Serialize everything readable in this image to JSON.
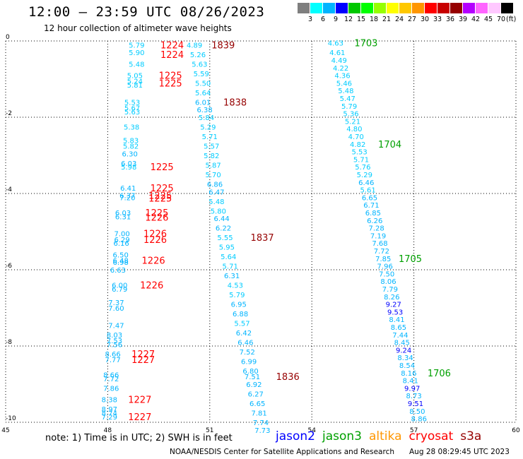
{
  "header": {
    "title": "12:00 – 23:59 UTC 08/26/2023",
    "subtitle": "12 hour collection of altimeter wave heights"
  },
  "scale": {
    "unit": "(ft)",
    "labels": [
      "3",
      "6",
      "9",
      "12",
      "15",
      "18",
      "21",
      "24",
      "27",
      "30",
      "33",
      "36",
      "39",
      "42",
      "45",
      "70"
    ],
    "colors": [
      "#7f7f7f",
      "#00ffff",
      "#00b4ff",
      "#0000ff",
      "#00c800",
      "#00ff00",
      "#96ff00",
      "#ffff00",
      "#ffc800",
      "#ff9600",
      "#ff0000",
      "#c80000",
      "#960000",
      "#b400ff",
      "#ff64ff",
      "#ffc8ff",
      "#000000"
    ]
  },
  "chart_data": {
    "type": "scatter",
    "xlim": [
      45,
      60
    ],
    "ylim": [
      -10,
      0
    ],
    "xticks": [
      45,
      48,
      51,
      54,
      57,
      60
    ],
    "yticks": [
      0,
      -2,
      -4,
      -6,
      -8,
      -10
    ],
    "points": [
      {
        "x": 48.85,
        "y": -0.1,
        "v": "5.79"
      },
      {
        "x": 48.85,
        "y": -0.3,
        "v": "5.90"
      },
      {
        "x": 48.85,
        "y": -0.6,
        "v": "5.48"
      },
      {
        "x": 48.8,
        "y": -0.9,
        "v": "5.05"
      },
      {
        "x": 48.8,
        "y": -1.05,
        "v": "5.24"
      },
      {
        "x": 48.8,
        "y": -1.15,
        "v": "5.81"
      },
      {
        "x": 48.72,
        "y": -1.6,
        "v": "5.53"
      },
      {
        "x": 48.72,
        "y": -1.75,
        "v": "5.67"
      },
      {
        "x": 48.72,
        "y": -1.85,
        "v": "5.63"
      },
      {
        "x": 48.7,
        "y": -2.25,
        "v": "5.38"
      },
      {
        "x": 48.68,
        "y": -2.6,
        "v": "5.83"
      },
      {
        "x": 48.68,
        "y": -2.75,
        "v": "5.82"
      },
      {
        "x": 48.65,
        "y": -2.95,
        "v": "6.30"
      },
      {
        "x": 48.62,
        "y": -3.2,
        "v": "6.03"
      },
      {
        "x": 48.62,
        "y": -3.3,
        "v": "5.98"
      },
      {
        "x": 48.6,
        "y": -3.85,
        "v": "6.41"
      },
      {
        "x": 48.58,
        "y": -4.05,
        "v": "6.37"
      },
      {
        "x": 48.58,
        "y": -4.1,
        "v": "7.20"
      },
      {
        "x": 48.45,
        "y": -4.5,
        "v": "6.03"
      },
      {
        "x": 48.45,
        "y": -4.6,
        "v": "6.31"
      },
      {
        "x": 48.42,
        "y": -5.05,
        "v": "7.00"
      },
      {
        "x": 48.42,
        "y": -5.2,
        "v": "6.29"
      },
      {
        "x": 48.4,
        "y": -5.3,
        "v": "6.16"
      },
      {
        "x": 48.38,
        "y": -5.6,
        "v": "6.50"
      },
      {
        "x": 48.38,
        "y": -5.75,
        "v": "6.48"
      },
      {
        "x": 48.38,
        "y": -5.8,
        "v": "6.98"
      },
      {
        "x": 48.3,
        "y": -6.0,
        "v": "6.63"
      },
      {
        "x": 48.35,
        "y": -6.4,
        "v": "6.00"
      },
      {
        "x": 48.35,
        "y": -6.5,
        "v": "6.79"
      },
      {
        "x": 48.25,
        "y": -6.85,
        "v": "7.37"
      },
      {
        "x": 48.25,
        "y": -7.0,
        "v": "7.60"
      },
      {
        "x": 48.25,
        "y": -7.45,
        "v": "7.47"
      },
      {
        "x": 48.2,
        "y": -7.7,
        "v": "8.03"
      },
      {
        "x": 48.2,
        "y": -7.85,
        "v": "7.53"
      },
      {
        "x": 48.2,
        "y": -7.95,
        "v": "7.56"
      },
      {
        "x": 48.15,
        "y": -8.2,
        "v": "8.66"
      },
      {
        "x": 48.15,
        "y": -8.35,
        "v": "7.77"
      },
      {
        "x": 48.1,
        "y": -8.75,
        "v": "8.66"
      },
      {
        "x": 48.1,
        "y": -8.85,
        "v": "7.72"
      },
      {
        "x": 48.1,
        "y": -9.1,
        "v": "7.86"
      },
      {
        "x": 48.05,
        "y": -9.4,
        "v": "8.38"
      },
      {
        "x": 48.05,
        "y": -9.65,
        "v": "8.97"
      },
      {
        "x": 48.05,
        "y": -9.75,
        "v": "8.74"
      },
      {
        "x": 48.05,
        "y": -9.85,
        "v": "7.29"
      },
      {
        "x": 50.55,
        "y": -0.1,
        "v": "4.89"
      },
      {
        "x": 50.65,
        "y": -0.35,
        "v": "5.26"
      },
      {
        "x": 50.7,
        "y": -0.6,
        "v": "5.63"
      },
      {
        "x": 50.75,
        "y": -0.85,
        "v": "5.59"
      },
      {
        "x": 50.8,
        "y": -1.1,
        "v": "5.50"
      },
      {
        "x": 50.8,
        "y": -1.35,
        "v": "5.64"
      },
      {
        "x": 50.8,
        "y": -1.6,
        "v": "6.01"
      },
      {
        "x": 50.85,
        "y": -1.8,
        "v": "6.38"
      },
      {
        "x": 50.9,
        "y": -2.0,
        "v": "5.84"
      },
      {
        "x": 50.95,
        "y": -2.25,
        "v": "5.29"
      },
      {
        "x": 51.0,
        "y": -2.5,
        "v": "5.71"
      },
      {
        "x": 51.05,
        "y": -2.75,
        "v": "5.57"
      },
      {
        "x": 51.05,
        "y": -3.0,
        "v": "5.82"
      },
      {
        "x": 51.1,
        "y": -3.25,
        "v": "5.87"
      },
      {
        "x": 51.1,
        "y": -3.5,
        "v": "5.70"
      },
      {
        "x": 51.15,
        "y": -3.75,
        "v": "6.86"
      },
      {
        "x": 51.2,
        "y": -3.95,
        "v": "6.47"
      },
      {
        "x": 51.2,
        "y": -4.2,
        "v": "5.48"
      },
      {
        "x": 51.25,
        "y": -4.45,
        "v": "5.80"
      },
      {
        "x": 51.35,
        "y": -4.65,
        "v": "6.44"
      },
      {
        "x": 51.4,
        "y": -4.9,
        "v": "6.22"
      },
      {
        "x": 51.45,
        "y": -5.15,
        "v": "5.55"
      },
      {
        "x": 51.5,
        "y": -5.4,
        "v": "5.95"
      },
      {
        "x": 51.55,
        "y": -5.65,
        "v": "5.64"
      },
      {
        "x": 51.6,
        "y": -5.9,
        "v": "5.71"
      },
      {
        "x": 51.65,
        "y": -6.15,
        "v": "6.31"
      },
      {
        "x": 51.75,
        "y": -6.4,
        "v": "4.53"
      },
      {
        "x": 51.8,
        "y": -6.65,
        "v": "5.79"
      },
      {
        "x": 51.85,
        "y": -6.9,
        "v": "6.95"
      },
      {
        "x": 51.9,
        "y": -7.15,
        "v": "6.88"
      },
      {
        "x": 51.95,
        "y": -7.4,
        "v": "5.57"
      },
      {
        "x": 52.0,
        "y": -7.65,
        "v": "6.42"
      },
      {
        "x": 52.05,
        "y": -7.9,
        "v": "6.46"
      },
      {
        "x": 52.1,
        "y": -8.15,
        "v": "7.52"
      },
      {
        "x": 52.15,
        "y": -8.4,
        "v": "6.99"
      },
      {
        "x": 52.2,
        "y": -8.65,
        "v": "6.80"
      },
      {
        "x": 52.25,
        "y": -8.8,
        "v": "7.51"
      },
      {
        "x": 52.3,
        "y": -9.0,
        "v": "6.92"
      },
      {
        "x": 52.35,
        "y": -9.25,
        "v": "6.27"
      },
      {
        "x": 52.4,
        "y": -9.5,
        "v": "6.65"
      },
      {
        "x": 52.45,
        "y": -9.75,
        "v": "7.81"
      },
      {
        "x": 52.5,
        "y": -10.0,
        "v": "7.74"
      },
      {
        "x": 52.55,
        "y": -10.2,
        "v": "7.73"
      },
      {
        "x": 54.7,
        "y": -0.05,
        "v": "4.63"
      },
      {
        "x": 54.75,
        "y": -0.3,
        "v": "4.61"
      },
      {
        "x": 54.8,
        "y": -0.5,
        "v": "4.49"
      },
      {
        "x": 54.85,
        "y": -0.7,
        "v": "4.22"
      },
      {
        "x": 54.9,
        "y": -0.9,
        "v": "4.36"
      },
      {
        "x": 54.95,
        "y": -1.1,
        "v": "5.46"
      },
      {
        "x": 55.0,
        "y": -1.3,
        "v": "5.48"
      },
      {
        "x": 55.05,
        "y": -1.5,
        "v": "5.47"
      },
      {
        "x": 55.1,
        "y": -1.7,
        "v": "5.79"
      },
      {
        "x": 55.15,
        "y": -1.9,
        "v": "5.36"
      },
      {
        "x": 55.2,
        "y": -2.1,
        "v": "5.21"
      },
      {
        "x": 55.25,
        "y": -2.3,
        "v": "4.80"
      },
      {
        "x": 55.3,
        "y": -2.5,
        "v": "4.70"
      },
      {
        "x": 55.35,
        "y": -2.7,
        "v": "4.82"
      },
      {
        "x": 55.4,
        "y": -2.9,
        "v": "5.53"
      },
      {
        "x": 55.45,
        "y": -3.1,
        "v": "5.71"
      },
      {
        "x": 55.5,
        "y": -3.3,
        "v": "5.76"
      },
      {
        "x": 55.55,
        "y": -3.5,
        "v": "5.29"
      },
      {
        "x": 55.6,
        "y": -3.7,
        "v": "6.46"
      },
      {
        "x": 55.65,
        "y": -3.9,
        "v": "5.61"
      },
      {
        "x": 55.7,
        "y": -4.1,
        "v": "6.65"
      },
      {
        "x": 55.75,
        "y": -4.3,
        "v": "6.71"
      },
      {
        "x": 55.8,
        "y": -4.5,
        "v": "6.85"
      },
      {
        "x": 55.85,
        "y": -4.7,
        "v": "6.26"
      },
      {
        "x": 55.9,
        "y": -4.9,
        "v": "7.28"
      },
      {
        "x": 55.95,
        "y": -5.1,
        "v": "7.19"
      },
      {
        "x": 56.0,
        "y": -5.3,
        "v": "7.68"
      },
      {
        "x": 56.05,
        "y": -5.5,
        "v": "7.72"
      },
      {
        "x": 56.1,
        "y": -5.7,
        "v": "7.85"
      },
      {
        "x": 56.15,
        "y": -5.9,
        "v": "7.96"
      },
      {
        "x": 56.2,
        "y": -6.1,
        "v": "7.50"
      },
      {
        "x": 56.25,
        "y": -6.3,
        "v": "8.06"
      },
      {
        "x": 56.3,
        "y": -6.5,
        "v": "7.79"
      },
      {
        "x": 56.35,
        "y": -6.7,
        "v": "8.26"
      },
      {
        "x": 56.4,
        "y": -6.9,
        "v": "9.27"
      },
      {
        "x": 56.45,
        "y": -7.1,
        "v": "9.53"
      },
      {
        "x": 56.5,
        "y": -7.3,
        "v": "8.41"
      },
      {
        "x": 56.55,
        "y": -7.5,
        "v": "8.65"
      },
      {
        "x": 56.6,
        "y": -7.7,
        "v": "7.44"
      },
      {
        "x": 56.65,
        "y": -7.9,
        "v": "8.45"
      },
      {
        "x": 56.7,
        "y": -8.1,
        "v": "9.24"
      },
      {
        "x": 56.75,
        "y": -8.3,
        "v": "8.34"
      },
      {
        "x": 56.8,
        "y": -8.5,
        "v": "8.54"
      },
      {
        "x": 56.85,
        "y": -8.7,
        "v": "8.16"
      },
      {
        "x": 56.9,
        "y": -8.9,
        "v": "8.41"
      },
      {
        "x": 56.95,
        "y": -9.1,
        "v": "9.97"
      },
      {
        "x": 57.0,
        "y": -9.3,
        "v": "8.73"
      },
      {
        "x": 57.05,
        "y": -9.5,
        "v": "9.51"
      },
      {
        "x": 57.1,
        "y": -9.7,
        "v": "8.50"
      },
      {
        "x": 57.15,
        "y": -9.9,
        "v": "8.86"
      }
    ],
    "times": [
      {
        "x": 49.55,
        "y": -0.1,
        "label": "1224",
        "sat": "cryosat"
      },
      {
        "x": 49.55,
        "y": -0.35,
        "label": "1224",
        "sat": "cryosat"
      },
      {
        "x": 49.5,
        "y": -0.9,
        "label": "1225",
        "sat": "cryosat"
      },
      {
        "x": 49.5,
        "y": -1.1,
        "label": "1225",
        "sat": "cryosat"
      },
      {
        "x": 49.25,
        "y": -3.3,
        "label": "1225",
        "sat": "cryosat"
      },
      {
        "x": 49.25,
        "y": -3.85,
        "label": "1225",
        "sat": "cryosat"
      },
      {
        "x": 49.2,
        "y": -4.05,
        "label": "1225",
        "sat": "cryosat"
      },
      {
        "x": 49.2,
        "y": -4.12,
        "label": "1225",
        "sat": "cryosat"
      },
      {
        "x": 49.1,
        "y": -4.5,
        "label": "1225",
        "sat": "cryosat"
      },
      {
        "x": 49.1,
        "y": -4.62,
        "label": "1226",
        "sat": "cryosat"
      },
      {
        "x": 49.05,
        "y": -5.05,
        "label": "1226",
        "sat": "cryosat"
      },
      {
        "x": 49.05,
        "y": -5.2,
        "label": "1226",
        "sat": "cryosat"
      },
      {
        "x": 49.0,
        "y": -5.75,
        "label": "1226",
        "sat": "cryosat"
      },
      {
        "x": 48.95,
        "y": -6.4,
        "label": "1226",
        "sat": "cryosat"
      },
      {
        "x": 48.7,
        "y": -8.2,
        "label": "1227",
        "sat": "cryosat"
      },
      {
        "x": 48.7,
        "y": -8.35,
        "label": "1227",
        "sat": "cryosat"
      },
      {
        "x": 48.6,
        "y": -9.4,
        "label": "1227",
        "sat": "cryosat"
      },
      {
        "x": 48.6,
        "y": -9.85,
        "label": "1227",
        "sat": "cryosat"
      },
      {
        "x": 51.05,
        "y": -0.1,
        "label": "1839",
        "sat": "s3a"
      },
      {
        "x": 51.4,
        "y": -1.6,
        "label": "1838",
        "sat": "s3a"
      },
      {
        "x": 52.2,
        "y": -5.15,
        "label": "1837",
        "sat": "s3a"
      },
      {
        "x": 52.95,
        "y": -8.8,
        "label": "1836",
        "sat": "s3a"
      },
      {
        "x": 55.25,
        "y": -0.05,
        "label": "1703",
        "sat": "jason3"
      },
      {
        "x": 55.95,
        "y": -2.7,
        "label": "1704",
        "sat": "jason3"
      },
      {
        "x": 56.55,
        "y": -5.7,
        "label": "1705",
        "sat": "jason3"
      },
      {
        "x": 57.4,
        "y": -8.7,
        "label": "1706",
        "sat": "jason3"
      }
    ]
  },
  "legend": {
    "note": "note:  1) Time is in UTC; 2) SWH is in feet",
    "satellites": [
      {
        "name": "jason2",
        "color": "#0000ff"
      },
      {
        "name": "jason3",
        "color": "#00a000"
      },
      {
        "name": "altika",
        "color": "#ff9600"
      },
      {
        "name": "cryosat",
        "color": "#ff0000"
      },
      {
        "name": "s3a",
        "color": "#960000"
      }
    ]
  },
  "footer": {
    "credit": "NOAA/NESDIS Center for Satellite Applications and Research",
    "timestamp": "Aug 28 08:29:45 UTC 2023"
  }
}
